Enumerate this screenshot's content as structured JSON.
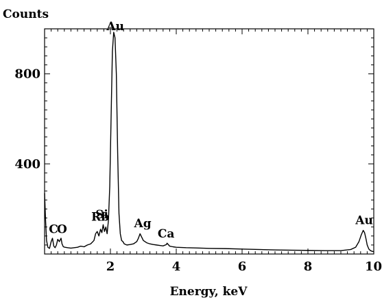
{
  "chart_data": {
    "type": "line",
    "title": "",
    "ylabel": "Counts",
    "xlabel": "Energy, keV",
    "xlim": [
      0.0,
      10.0
    ],
    "ylim": [
      0,
      1000
    ],
    "x_ticks": [
      2,
      4,
      6,
      8,
      10
    ],
    "x_tick_labels": [
      "2",
      "4",
      "6",
      "8",
      "10"
    ],
    "y_ticks": [
      400,
      800
    ],
    "y_tick_labels": [
      "400",
      "800"
    ],
    "grid": false,
    "legend": "none",
    "series": [
      {
        "x": [
          0.0,
          0.03,
          0.06,
          0.1,
          0.15,
          0.2,
          0.24,
          0.28,
          0.32,
          0.36,
          0.4,
          0.45,
          0.5,
          0.53,
          0.57,
          0.62,
          0.7,
          0.8,
          0.9,
          1.0,
          1.1,
          1.2,
          1.3,
          1.4,
          1.5,
          1.55,
          1.6,
          1.65,
          1.7,
          1.74,
          1.78,
          1.82,
          1.86,
          1.9,
          1.94,
          1.98,
          2.02,
          2.06,
          2.1,
          2.14,
          2.18,
          2.22,
          2.26,
          2.3,
          2.34,
          2.38,
          2.42,
          2.5,
          2.6,
          2.7,
          2.8,
          2.85,
          2.9,
          2.95,
          3.0,
          3.05,
          3.1,
          3.2,
          3.3,
          3.4,
          3.5,
          3.6,
          3.7,
          3.72,
          3.8,
          3.9,
          4.0,
          4.3,
          4.6,
          5.0,
          5.5,
          6.0,
          6.5,
          7.0,
          7.5,
          8.0,
          8.5,
          9.0,
          9.3,
          9.45,
          9.55,
          9.62,
          9.68,
          9.72,
          9.76,
          9.8,
          9.85,
          9.9,
          9.95,
          10.0
        ],
        "y": [
          270,
          150,
          60,
          30,
          25,
          55,
          70,
          35,
          28,
          40,
          65,
          55,
          70,
          45,
          32,
          30,
          28,
          26,
          28,
          30,
          35,
          32,
          40,
          45,
          60,
          90,
          100,
          80,
          110,
          95,
          130,
          100,
          120,
          90,
          150,
          300,
          600,
          900,
          985,
          960,
          800,
          450,
          180,
          90,
          60,
          55,
          45,
          40,
          42,
          45,
          55,
          70,
          90,
          75,
          60,
          55,
          50,
          45,
          42,
          40,
          38,
          36,
          42,
          48,
          35,
          32,
          30,
          28,
          27,
          25,
          24,
          22,
          20,
          18,
          17,
          16,
          15,
          15,
          20,
          30,
          55,
          85,
          105,
          95,
          70,
          40,
          22,
          15,
          12,
          10
        ]
      }
    ],
    "annotations": [
      {
        "text": "Au",
        "x": 2.15,
        "y": 975
      },
      {
        "text": "C",
        "x": 0.27,
        "y": 75
      },
      {
        "text": "O",
        "x": 0.53,
        "y": 75
      },
      {
        "text": "Rb",
        "x": 1.69,
        "y": 130
      },
      {
        "text": "Si",
        "x": 1.74,
        "y": 140
      },
      {
        "text": "Ag",
        "x": 2.98,
        "y": 100
      },
      {
        "text": "Ca",
        "x": 3.69,
        "y": 55
      },
      {
        "text": "Au",
        "x": 9.71,
        "y": 115
      }
    ]
  },
  "colors": {
    "line": "#000000",
    "axis": "#000000",
    "background": "#ffffff"
  }
}
